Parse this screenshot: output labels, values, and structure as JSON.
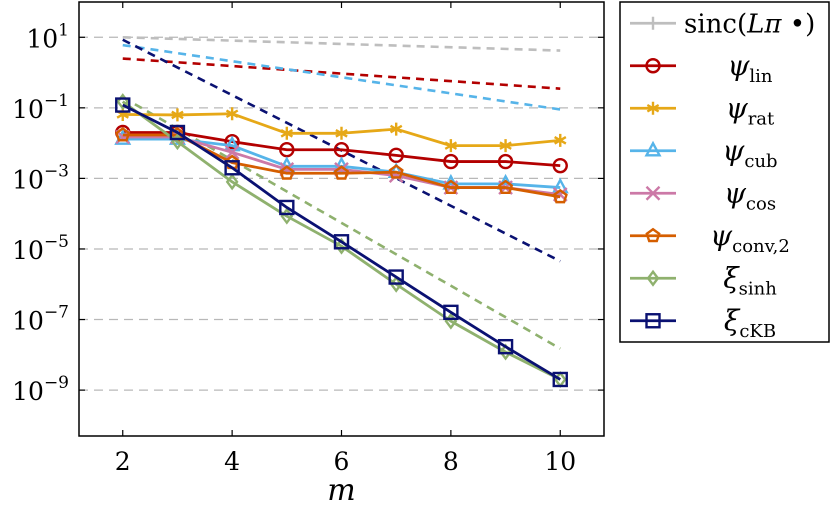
{
  "chart_data": {
    "type": "line",
    "xlabel": "m",
    "ylabel": "",
    "title": "",
    "yscale": "log",
    "xlim": [
      1.2,
      10.8
    ],
    "ylim": [
      5e-11,
      100
    ],
    "xticks": [
      2,
      4,
      6,
      8,
      10
    ],
    "xtick_labels": [
      "2",
      "4",
      "6",
      "8",
      "10"
    ],
    "yticks": [
      1e-09,
      1e-07,
      1e-05,
      0.001,
      0.1,
      10
    ],
    "ytick_bases": [
      "10",
      "10",
      "10",
      "10",
      "10",
      "10"
    ],
    "ytick_exponents": [
      "−9",
      "−7",
      "−5",
      "−3",
      "−1",
      "1"
    ],
    "grid": "horizontal-dashed",
    "legend_position": "outside-right",
    "x": [
      2,
      3,
      4,
      5,
      6,
      7,
      8,
      9,
      10
    ],
    "series": [
      {
        "name_main": "sinc(",
        "name_italic": "Lπ",
        "name_tail": " •)",
        "name_sub": "",
        "color": "#bebebe",
        "marker": "plus",
        "values": [
          10,
          7.5,
          6.5,
          6.0,
          5.6,
          5.2,
          5.0,
          4.7,
          4.4
        ],
        "style": "dashed-line-only"
      },
      {
        "name_main": "ψ",
        "name_sub": "lin",
        "color": "#b30000",
        "marker": "circle",
        "values": [
          0.02,
          0.02,
          0.011,
          0.0065,
          0.0065,
          0.0045,
          0.003,
          0.003,
          0.0023
        ]
      },
      {
        "name_main": "ψ",
        "name_sub": "rat",
        "color": "#e6a817",
        "marker": "asterisk",
        "values": [
          0.065,
          0.063,
          0.068,
          0.019,
          0.019,
          0.025,
          0.0085,
          0.0085,
          0.012
        ]
      },
      {
        "name_main": "ψ",
        "name_sub": "cub",
        "color": "#56b4e9",
        "marker": "triangle",
        "values": [
          0.013,
          0.013,
          0.0085,
          0.0022,
          0.0022,
          0.0015,
          0.0007,
          0.0007,
          0.00055
        ]
      },
      {
        "name_main": "ψ",
        "name_sub": "cos",
        "color": "#cc79a7",
        "marker": "cross",
        "values": [
          0.015,
          0.015,
          0.0055,
          0.0018,
          0.0018,
          0.0012,
          0.00055,
          0.00055,
          0.00035
        ]
      },
      {
        "name_main": "ψ",
        "name_sub": "conv,2",
        "color": "#d55e00",
        "marker": "pentagon",
        "values": [
          0.017,
          0.017,
          0.0028,
          0.0014,
          0.0014,
          0.0015,
          0.00055,
          0.00055,
          0.0003
        ]
      },
      {
        "name_main": "ξ",
        "name_sub": "sinh",
        "color": "#8fb16e",
        "marker": "diamond",
        "values": [
          0.15,
          0.011,
          0.0008,
          8.5e-05,
          1.2e-05,
          1e-06,
          9e-08,
          1.2e-08,
          2e-09
        ]
      },
      {
        "name_main": "ξ",
        "name_sub": "cKB",
        "color": "#0a1172",
        "marker": "square",
        "values": [
          0.12,
          0.02,
          0.002,
          0.00015,
          1.6e-05,
          1.6e-06,
          1.6e-07,
          1.7e-08,
          2e-09
        ]
      }
    ],
    "reference_lines": [
      {
        "color": "#bebebe",
        "points": [
          [
            2,
            10
          ],
          [
            10,
            4.2
          ]
        ]
      },
      {
        "color": "#b30000",
        "points": [
          [
            2,
            2.5
          ],
          [
            10,
            0.35
          ]
        ]
      },
      {
        "color": "#56b4e9",
        "points": [
          [
            2,
            6.0
          ],
          [
            10,
            0.09
          ]
        ]
      },
      {
        "color": "#0a1172",
        "points": [
          [
            2,
            8.5
          ],
          [
            10,
            4.5e-06
          ]
        ]
      },
      {
        "color": "#8fb16e",
        "points": [
          [
            2,
            0.2
          ],
          [
            10,
            1.5e-08
          ]
        ]
      }
    ]
  }
}
